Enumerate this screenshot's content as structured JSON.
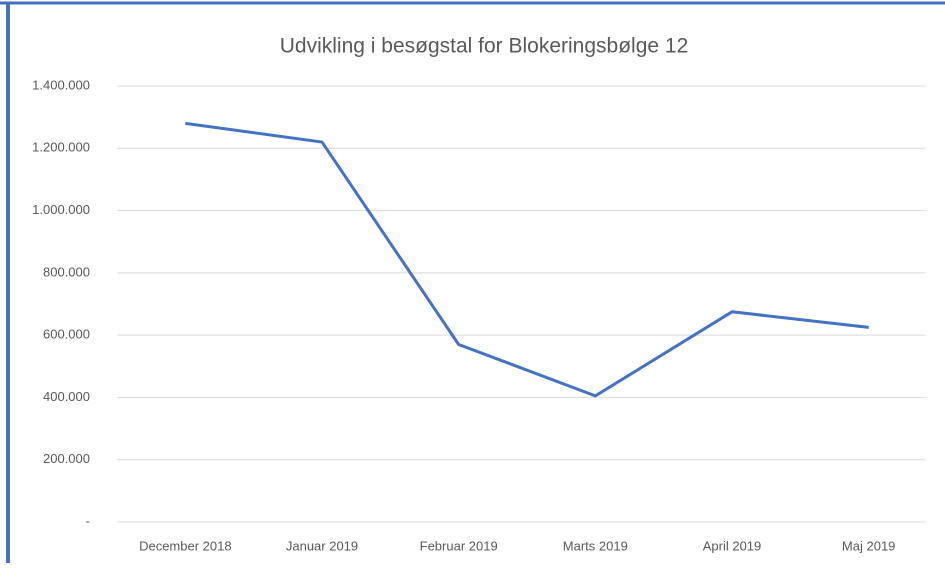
{
  "chart_data": {
    "type": "line",
    "title": "Udvikling i besøgstal for Blokeringsbølge 12",
    "categories": [
      "December 2018",
      "Januar 2019",
      "Februar 2019",
      "Marts 2019",
      "April 2019",
      "Maj 2019"
    ],
    "values": [
      1280000,
      1220000,
      570000,
      405000,
      675000,
      625000
    ],
    "color": "#4472c4",
    "ylim": [
      0,
      1400000
    ],
    "yticks": [
      {
        "value": 0,
        "label": "-"
      },
      {
        "value": 200000,
        "label": "200.000"
      },
      {
        "value": 400000,
        "label": "400.000"
      },
      {
        "value": 600000,
        "label": "600.000"
      },
      {
        "value": 800000,
        "label": "800.000"
      },
      {
        "value": 1000000,
        "label": "1.000.000"
      },
      {
        "value": 1200000,
        "label": "1.200.000"
      },
      {
        "value": 1400000,
        "label": "1.400.000"
      }
    ],
    "grid": true
  }
}
